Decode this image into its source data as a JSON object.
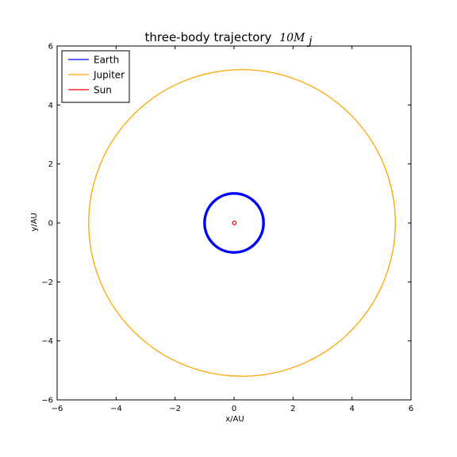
{
  "chart_data": {
    "type": "line",
    "title": "three-body trajectory",
    "title_math": "10M",
    "title_math_sub": "j",
    "xlabel": "x/AU",
    "ylabel": "y/AU",
    "xlim": [
      -6,
      6
    ],
    "ylim": [
      -6,
      6
    ],
    "xticks": [
      -6,
      -4,
      -2,
      0,
      2,
      4,
      6
    ],
    "yticks": [
      -6,
      -4,
      -2,
      0,
      2,
      4,
      6
    ],
    "xtick_labels": [
      "−6",
      "−4",
      "−2",
      "0",
      "2",
      "4",
      "6"
    ],
    "ytick_labels": [
      "−6",
      "−4",
      "−2",
      "0",
      "2",
      "4",
      "6"
    ],
    "grid": false,
    "legend_position": "top-left",
    "series": [
      {
        "name": "Earth",
        "color": "#0000ff",
        "shape": "orbit band",
        "center": [
          0,
          0
        ],
        "radius_inner": 0.97,
        "radius_outer": 1.03,
        "samples": [
          [
            1.0,
            0
          ],
          [
            0,
            1.0
          ],
          [
            -1.0,
            0
          ],
          [
            0,
            -1.0
          ]
        ]
      },
      {
        "name": "Jupiter",
        "color": "#ffa500",
        "shape": "orbit ellipse",
        "center": [
          0.27,
          0.0
        ],
        "semi_axis_x": 5.2,
        "semi_axis_y": 5.2,
        "samples": [
          [
            5.47,
            0
          ],
          [
            0.27,
            5.2
          ],
          [
            -4.93,
            0
          ],
          [
            0.27,
            -5.2
          ]
        ]
      },
      {
        "name": "Sun",
        "color": "#ff0000",
        "shape": "small loop",
        "center": [
          0.01,
          0.0
        ],
        "radius": 0.06,
        "samples": [
          [
            0.07,
            0
          ],
          [
            0.01,
            0.06
          ],
          [
            -0.05,
            0
          ],
          [
            0.01,
            -0.06
          ]
        ]
      }
    ]
  }
}
